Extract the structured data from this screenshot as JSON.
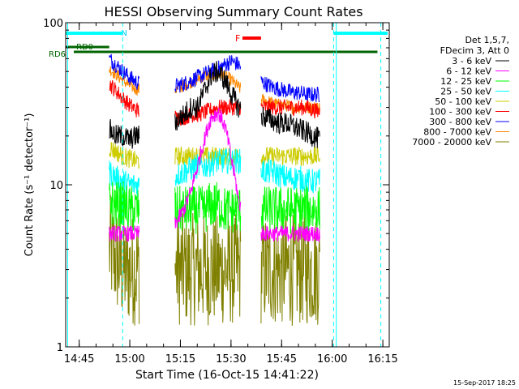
{
  "chart_data": {
    "type": "line",
    "title": "HESSI Observing Summary Count Rates",
    "xlabel": "Start Time (16-Oct-15 14:41:22)",
    "ylabel": "Count Rate (s⁻¹ detector⁻¹)",
    "ylim": [
      1,
      100
    ],
    "yscale": "log",
    "xlim_minutes": [
      -0.4,
      95.5
    ],
    "x_ticks": [
      {
        "label": "14:45",
        "min": 3.6
      },
      {
        "label": "15:00",
        "min": 18.6
      },
      {
        "label": "15:15",
        "min": 33.6
      },
      {
        "label": "15:30",
        "min": 48.6
      },
      {
        "label": "15:45",
        "min": 63.6
      },
      {
        "label": "16:00",
        "min": 78.6
      },
      {
        "label": "16:15",
        "min": 93.6
      }
    ],
    "y_tick_labels": [
      {
        "label": "1",
        "value": 1
      },
      {
        "label": "10",
        "value": 10
      },
      {
        "label": "100",
        "value": 100
      }
    ],
    "legend_header": [
      "Det 1,5,7,",
      "FDecim 3, Att 0"
    ],
    "legend_position": "right",
    "annotations": {
      "N": "N",
      "F": "F",
      "RD0": "RD0",
      "RD6": "RD6",
      "timestamp": "15-Sep-2017 18:25"
    },
    "data_intervals": [
      [
        12.5,
        21.5
      ],
      [
        32.0,
        51.5
      ],
      [
        57.5,
        75.0
      ]
    ],
    "flags": {
      "N": [
        [
          -0.4,
          16.5
        ],
        [
          79.0,
          95.0
        ]
      ],
      "F": [
        [
          52.0,
          57.5
        ]
      ],
      "RD0": [
        [
          -0.4,
          12.5
        ]
      ],
      "RD6": [
        [
          2.0,
          92.0
        ]
      ]
    },
    "dashed_lines_min": [
      16.5,
      79.0,
      93.0
    ],
    "series": [
      {
        "name": "3 - 6 keV",
        "color": "#000000",
        "values": [
          22,
          20,
          20,
          19,
          20,
          20,
          20,
          21,
          22,
          22,
          25,
          27,
          30,
          30,
          38,
          47,
          50,
          44,
          36,
          30,
          29,
          28,
          27,
          26,
          25,
          24,
          24,
          23,
          22,
          21,
          20,
          19
        ],
        "noise": 0.07
      },
      {
        "name": "6 - 12 keV",
        "color": "#ff00ff",
        "values": [
          5,
          5,
          5,
          5,
          5,
          5,
          5,
          5,
          5,
          5,
          6,
          7,
          9,
          13,
          19,
          26,
          28,
          23,
          14,
          8,
          6,
          5,
          5,
          5,
          5,
          5,
          5,
          5,
          5,
          5,
          5,
          5
        ],
        "noise": 0.05
      },
      {
        "name": "12 - 25 keV",
        "color": "#00ff00",
        "values": [
          8,
          7.5,
          7.5,
          7,
          7,
          7,
          7,
          7,
          7,
          7,
          7,
          7,
          7,
          7,
          7,
          7.5,
          7.5,
          7,
          7,
          7,
          7,
          7,
          7,
          7,
          7,
          7,
          7,
          7,
          7,
          7,
          7,
          7
        ],
        "noise": 0.15
      },
      {
        "name": "25 - 50 keV",
        "color": "#00ffff",
        "values": [
          12,
          11,
          10.5,
          10,
          10,
          10,
          10,
          10,
          10.5,
          11,
          11.5,
          12,
          12.5,
          13,
          13,
          13.5,
          14,
          14,
          14,
          14,
          13.5,
          13,
          12.5,
          12,
          12,
          11.5,
          11,
          11,
          11,
          10.5,
          10.5,
          10.5
        ],
        "noise": 0.08
      },
      {
        "name": "50 - 100 keV",
        "color": "#cccc00",
        "values": [
          17,
          16,
          15,
          14.5,
          14,
          14,
          14,
          14,
          14,
          14.5,
          15,
          15,
          15,
          15,
          15,
          15,
          15,
          15,
          15,
          15,
          15,
          15,
          15,
          15,
          15,
          15,
          15,
          15,
          15,
          15,
          15,
          15
        ],
        "noise": 0.06
      },
      {
        "name": "100 - 300 keV",
        "color": "#ff0000",
        "values": [
          42,
          38,
          34,
          31,
          29,
          28,
          27,
          26,
          26,
          26,
          26,
          26,
          27,
          27,
          28,
          29,
          30,
          30,
          30,
          30,
          30,
          30,
          30,
          30,
          30,
          30,
          30,
          30,
          30,
          30,
          29,
          28
        ],
        "noise": 0.05
      },
      {
        "name": "300 - 800 keV",
        "color": "#0000ff",
        "values": [
          60,
          55,
          50,
          46,
          43,
          41,
          40,
          39,
          39,
          40,
          41,
          42,
          44,
          46,
          48,
          50,
          52,
          55,
          58,
          55,
          50,
          47,
          44,
          42,
          40,
          39,
          38,
          37,
          37,
          36,
          36,
          36
        ],
        "noise": 0.05
      },
      {
        "name": "800 - 7000 keV",
        "color": "#ff8800",
        "values": [
          52,
          48,
          44,
          41,
          39,
          38,
          37,
          37,
          37,
          38,
          39,
          41,
          43,
          45,
          47,
          48,
          48,
          47,
          44,
          40,
          37,
          35,
          34,
          33,
          32,
          31,
          31,
          30,
          30,
          30,
          30,
          30
        ],
        "noise": 0.04
      },
      {
        "name": "7000 - 20000 keV",
        "color": "#808000",
        "values": [
          4,
          3.5,
          3,
          3,
          3,
          3,
          3,
          3,
          3,
          3,
          3,
          3,
          3,
          3,
          3,
          3,
          3,
          3,
          3,
          3,
          3,
          3,
          3,
          3,
          3,
          3,
          3,
          3,
          3,
          3,
          3,
          3
        ],
        "noise": 0.35
      }
    ]
  }
}
